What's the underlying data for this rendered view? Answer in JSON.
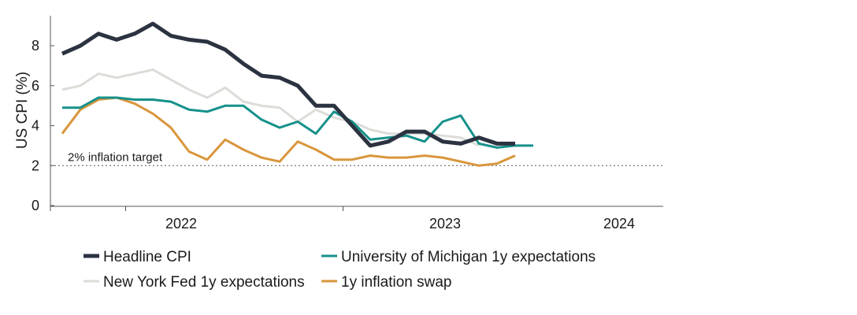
{
  "chart_data": {
    "type": "line",
    "title": "",
    "xlabel": "",
    "ylabel": "US CPI (%)",
    "ylim": [
      0,
      9.5
    ],
    "yticks": [
      0,
      2,
      4,
      6,
      8
    ],
    "grid": false,
    "x": [
      "2021-09",
      "2021-10",
      "2021-11",
      "2021-12",
      "2022-01",
      "2022-02",
      "2022-03",
      "2022-04",
      "2022-05",
      "2022-06",
      "2022-07",
      "2022-08",
      "2022-09",
      "2022-10",
      "2022-11",
      "2022-12",
      "2023-01",
      "2023-02",
      "2023-03",
      "2023-04",
      "2023-05",
      "2023-06",
      "2023-07",
      "2023-08",
      "2023-09",
      "2023-10",
      "2023-11",
      "2023-12",
      "2024-01",
      "2024-02",
      "2024-03"
    ],
    "x_tick_labels": [
      {
        "label": "2022",
        "at": "2022-01"
      },
      {
        "label": "2023",
        "at": "2023-01"
      },
      {
        "label": "2024",
        "at": "2024-01"
      }
    ],
    "x_year_boundaries": [
      "2021-12",
      "2022-12"
    ],
    "series": [
      {
        "name": "Headline CPI",
        "color": "#2b3240",
        "width": 5,
        "values": [
          7.6,
          8.0,
          8.6,
          8.3,
          8.6,
          9.1,
          8.5,
          8.3,
          8.2,
          7.8,
          7.1,
          6.5,
          6.4,
          6.0,
          5.0,
          5.0,
          4.0,
          3.0,
          3.2,
          3.7,
          3.7,
          3.2,
          3.1,
          3.4,
          3.1,
          3.1,
          null,
          null,
          null,
          null,
          null
        ]
      },
      {
        "name": "University of Michigan 1y expectations",
        "color": "#16918a",
        "width": 3,
        "values": [
          4.9,
          4.9,
          5.4,
          5.4,
          5.3,
          5.3,
          5.2,
          4.8,
          4.7,
          5.0,
          5.0,
          4.3,
          3.9,
          4.2,
          3.6,
          4.7,
          4.2,
          3.3,
          3.4,
          3.5,
          3.2,
          4.2,
          4.5,
          3.1,
          2.9,
          3.0,
          3.0,
          null,
          null,
          null,
          null
        ]
      },
      {
        "name": "New York Fed 1y expectations",
        "color": "#dcdcd8",
        "width": 3,
        "values": [
          5.8,
          6.0,
          6.6,
          6.4,
          6.6,
          6.8,
          6.3,
          5.8,
          5.4,
          5.9,
          5.2,
          5.0,
          4.9,
          4.2,
          4.8,
          4.4,
          4.2,
          3.8,
          3.6,
          3.6,
          3.6,
          3.5,
          3.4,
          3.0,
          null,
          null,
          null,
          null,
          null,
          null,
          null
        ]
      },
      {
        "name": "1y inflation swap",
        "color": "#d9963c",
        "width": 3,
        "values": [
          3.6,
          4.8,
          5.3,
          5.4,
          5.1,
          4.6,
          3.9,
          2.7,
          2.3,
          3.3,
          2.8,
          2.4,
          2.2,
          3.2,
          2.8,
          2.3,
          2.3,
          2.5,
          2.4,
          2.4,
          2.5,
          2.4,
          2.2,
          2.0,
          2.1,
          2.5,
          null,
          null,
          null,
          null,
          null
        ]
      }
    ],
    "reference_line": {
      "value": 2,
      "label": "2% inflation target",
      "style": "dotted",
      "color": "#555555"
    },
    "legend_position": "bottom-left"
  }
}
